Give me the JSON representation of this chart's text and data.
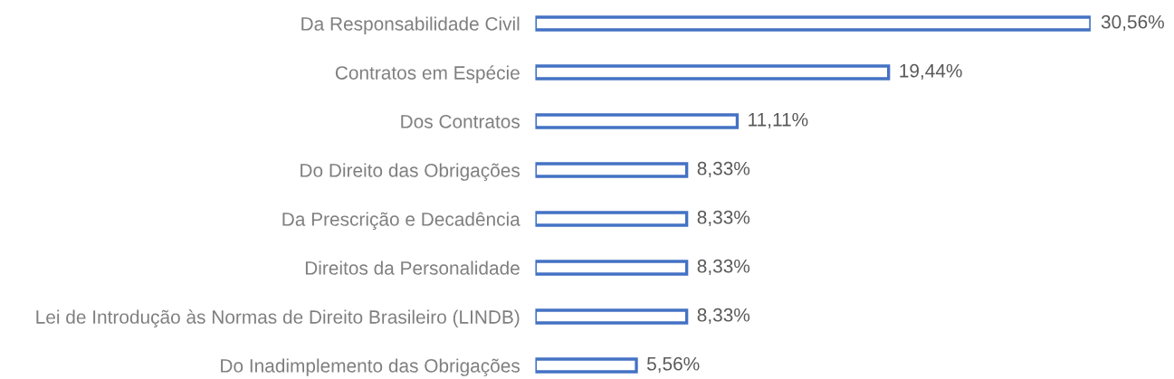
{
  "chart_data": {
    "type": "bar",
    "orientation": "horizontal",
    "categories": [
      "Da Responsabilidade Civil",
      "Contratos em Espécie",
      "Dos Contratos",
      "Do Direito das Obrigações",
      "Da Prescrição e Decadência",
      "Direitos da Personalidade",
      "Lei de Introdução às Normas de Direito Brasileiro (LINDB)",
      "Do Inadimplemento das Obrigações"
    ],
    "values": [
      30.56,
      19.44,
      11.11,
      8.33,
      8.33,
      8.33,
      8.33,
      5.56
    ],
    "value_labels": [
      "30,56%",
      "19,44%",
      "11,11%",
      "8,33%",
      "8,33%",
      "8,33%",
      "8,33%",
      "5,56%"
    ],
    "color": "#4472c4",
    "tick_labels": "y"
  }
}
